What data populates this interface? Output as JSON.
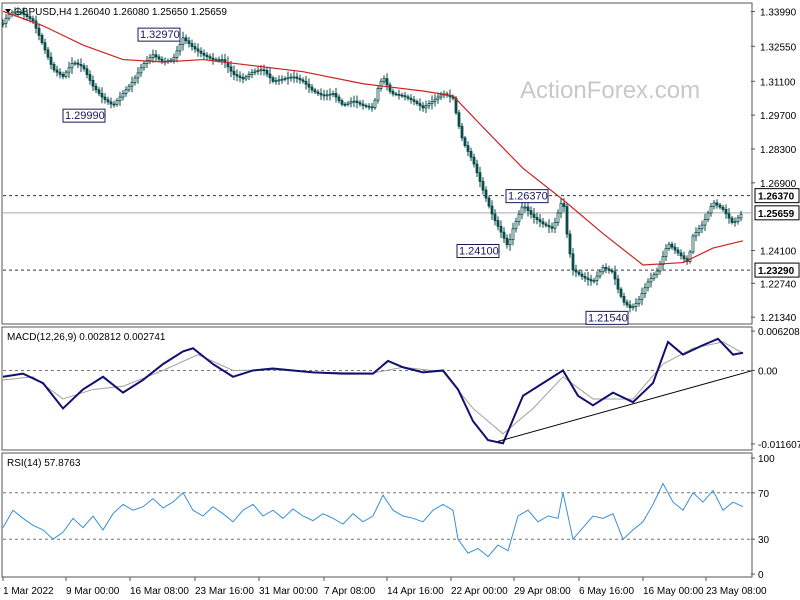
{
  "header": {
    "symbol": "GBPUSD,H4",
    "ohlc": "1.26040 1.26080 1.25650 1.25659"
  },
  "watermark": "ActionForex.com",
  "colors": {
    "price_bar": "#0a4a4a",
    "ma_line": "#cc2222",
    "macd_line": "#101070",
    "signal_line": "#a0a0a0",
    "rsi_line": "#3a8fd8",
    "frame": "#555555",
    "level_line": "#333333"
  },
  "chart_data": [
    {
      "type": "candlestick",
      "title": "GBPUSD,H4",
      "y_ticks": [
        "1.33990",
        "1.32550",
        "1.31100",
        "1.29700",
        "1.28300",
        "1.26900",
        "1.25659",
        "1.24100",
        "1.22740",
        "1.21340"
      ],
      "ylim": [
        1.211,
        1.343
      ],
      "x_ticks": [
        "1 Mar 2022",
        "9 Mar 00:00",
        "16 Mar 08:00",
        "23 Mar 16:00",
        "31 Mar 00:00",
        "7 Apr 08:00",
        "14 Apr 16:00",
        "22 Apr 00:00",
        "29 Apr 08:00",
        "6 May 16:00",
        "16 May 00:00",
        "23 May 08:00"
      ],
      "price_series": [
        {
          "x": 0,
          "y": 1.335
        },
        {
          "x": 5,
          "y": 1.3385
        },
        {
          "x": 12,
          "y": 1.34
        },
        {
          "x": 20,
          "y": 1.339
        },
        {
          "x": 30,
          "y": 1.336
        },
        {
          "x": 40,
          "y": 1.326
        },
        {
          "x": 50,
          "y": 1.316
        },
        {
          "x": 60,
          "y": 1.313
        },
        {
          "x": 70,
          "y": 1.319
        },
        {
          "x": 80,
          "y": 1.317
        },
        {
          "x": 90,
          "y": 1.309
        },
        {
          "x": 100,
          "y": 1.304
        },
        {
          "x": 110,
          "y": 1.301
        },
        {
          "x": 120,
          "y": 1.306
        },
        {
          "x": 130,
          "y": 1.311
        },
        {
          "x": 140,
          "y": 1.318
        },
        {
          "x": 150,
          "y": 1.322
        },
        {
          "x": 160,
          "y": 1.319
        },
        {
          "x": 170,
          "y": 1.32
        },
        {
          "x": 180,
          "y": 1.329
        },
        {
          "x": 190,
          "y": 1.325
        },
        {
          "x": 200,
          "y": 1.322
        },
        {
          "x": 210,
          "y": 1.32
        },
        {
          "x": 220,
          "y": 1.32
        },
        {
          "x": 230,
          "y": 1.314
        },
        {
          "x": 240,
          "y": 1.312
        },
        {
          "x": 250,
          "y": 1.315
        },
        {
          "x": 260,
          "y": 1.316
        },
        {
          "x": 270,
          "y": 1.311
        },
        {
          "x": 280,
          "y": 1.312
        },
        {
          "x": 290,
          "y": 1.313
        },
        {
          "x": 300,
          "y": 1.311
        },
        {
          "x": 310,
          "y": 1.307
        },
        {
          "x": 320,
          "y": 1.305
        },
        {
          "x": 330,
          "y": 1.306
        },
        {
          "x": 340,
          "y": 1.301
        },
        {
          "x": 350,
          "y": 1.303
        },
        {
          "x": 360,
          "y": 1.301
        },
        {
          "x": 370,
          "y": 1.3
        },
        {
          "x": 375,
          "y": 1.308
        },
        {
          "x": 380,
          "y": 1.313
        },
        {
          "x": 388,
          "y": 1.306
        },
        {
          "x": 400,
          "y": 1.305
        },
        {
          "x": 410,
          "y": 1.303
        },
        {
          "x": 420,
          "y": 1.3
        },
        {
          "x": 430,
          "y": 1.303
        },
        {
          "x": 440,
          "y": 1.306
        },
        {
          "x": 450,
          "y": 1.304
        },
        {
          "x": 455,
          "y": 1.294
        },
        {
          "x": 460,
          "y": 1.286
        },
        {
          "x": 470,
          "y": 1.278
        },
        {
          "x": 480,
          "y": 1.266
        },
        {
          "x": 490,
          "y": 1.255
        },
        {
          "x": 500,
          "y": 1.247
        },
        {
          "x": 505,
          "y": 1.2425
        },
        {
          "x": 510,
          "y": 1.25
        },
        {
          "x": 520,
          "y": 1.26
        },
        {
          "x": 530,
          "y": 1.255
        },
        {
          "x": 540,
          "y": 1.252
        },
        {
          "x": 550,
          "y": 1.25
        },
        {
          "x": 560,
          "y": 1.263
        },
        {
          "x": 565,
          "y": 1.244
        },
        {
          "x": 570,
          "y": 1.233
        },
        {
          "x": 580,
          "y": 1.23
        },
        {
          "x": 590,
          "y": 1.228
        },
        {
          "x": 600,
          "y": 1.234
        },
        {
          "x": 610,
          "y": 1.232
        },
        {
          "x": 615,
          "y": 1.225
        },
        {
          "x": 620,
          "y": 1.22
        },
        {
          "x": 628,
          "y": 1.217
        },
        {
          "x": 635,
          "y": 1.22
        },
        {
          "x": 645,
          "y": 1.228
        },
        {
          "x": 655,
          "y": 1.233
        },
        {
          "x": 665,
          "y": 1.244
        },
        {
          "x": 675,
          "y": 1.24
        },
        {
          "x": 685,
          "y": 1.236
        },
        {
          "x": 690,
          "y": 1.247
        },
        {
          "x": 700,
          "y": 1.252
        },
        {
          "x": 710,
          "y": 1.261
        },
        {
          "x": 720,
          "y": 1.258
        },
        {
          "x": 730,
          "y": 1.252
        },
        {
          "x": 738,
          "y": 1.256
        }
      ],
      "ma_series": [
        {
          "x": 0,
          "y": 1.34
        },
        {
          "x": 40,
          "y": 1.334
        },
        {
          "x": 80,
          "y": 1.326
        },
        {
          "x": 120,
          "y": 1.32
        },
        {
          "x": 160,
          "y": 1.319
        },
        {
          "x": 200,
          "y": 1.32
        },
        {
          "x": 240,
          "y": 1.318
        },
        {
          "x": 300,
          "y": 1.315
        },
        {
          "x": 360,
          "y": 1.31
        },
        {
          "x": 420,
          "y": 1.307
        },
        {
          "x": 450,
          "y": 1.305
        },
        {
          "x": 480,
          "y": 1.292
        },
        {
          "x": 520,
          "y": 1.275
        },
        {
          "x": 560,
          "y": 1.262
        },
        {
          "x": 600,
          "y": 1.248
        },
        {
          "x": 640,
          "y": 1.235
        },
        {
          "x": 680,
          "y": 1.236
        },
        {
          "x": 710,
          "y": 1.242
        },
        {
          "x": 740,
          "y": 1.245
        }
      ],
      "levels": [
        {
          "value": 1.2637,
          "label": "1.26370",
          "style": "dashed"
        },
        {
          "value": 1.25659,
          "label": "1.25659",
          "style": "solid"
        },
        {
          "value": 1.2329,
          "label": "1.23290",
          "style": "dashed"
        }
      ],
      "annotations": [
        {
          "label": "1.32970",
          "x": 180,
          "y": 1.3297
        },
        {
          "label": "1.29990",
          "x": 100,
          "y": 1.2999
        },
        {
          "label": "1.26370",
          "x": 560,
          "y": 1.2637
        },
        {
          "label": "1.24100",
          "x": 505,
          "y": 1.241
        },
        {
          "label": "1.21540",
          "x": 628,
          "y": 1.2154
        }
      ]
    },
    {
      "type": "line",
      "title": "MACD(12,26,9) 0.002812 0.002741",
      "y_ticks": [
        "0.006208",
        "0.00",
        "-0.011607"
      ],
      "ylim": [
        -0.0124,
        0.0067
      ],
      "macd_series": [
        {
          "x": 0,
          "y": -0.001
        },
        {
          "x": 20,
          "y": -0.0005
        },
        {
          "x": 40,
          "y": -0.002
        },
        {
          "x": 60,
          "y": -0.006
        },
        {
          "x": 80,
          "y": -0.003
        },
        {
          "x": 100,
          "y": -0.001
        },
        {
          "x": 120,
          "y": -0.0035
        },
        {
          "x": 140,
          "y": -0.0015
        },
        {
          "x": 160,
          "y": 0.001
        },
        {
          "x": 180,
          "y": 0.003
        },
        {
          "x": 190,
          "y": 0.0035
        },
        {
          "x": 210,
          "y": 0.001
        },
        {
          "x": 230,
          "y": -0.001
        },
        {
          "x": 250,
          "y": 0.0
        },
        {
          "x": 270,
          "y": 0.0003
        },
        {
          "x": 290,
          "y": 0.0
        },
        {
          "x": 310,
          "y": -0.0003
        },
        {
          "x": 340,
          "y": -0.0005
        },
        {
          "x": 370,
          "y": -0.0005
        },
        {
          "x": 385,
          "y": 0.0015
        },
        {
          "x": 400,
          "y": 0.0005
        },
        {
          "x": 420,
          "y": -0.0003
        },
        {
          "x": 440,
          "y": 0.0
        },
        {
          "x": 455,
          "y": -0.003
        },
        {
          "x": 470,
          "y": -0.008
        },
        {
          "x": 485,
          "y": -0.011
        },
        {
          "x": 500,
          "y": -0.0115
        },
        {
          "x": 520,
          "y": -0.004
        },
        {
          "x": 540,
          "y": -0.002
        },
        {
          "x": 560,
          "y": 0.0
        },
        {
          "x": 575,
          "y": -0.004
        },
        {
          "x": 590,
          "y": -0.0055
        },
        {
          "x": 610,
          "y": -0.0035
        },
        {
          "x": 630,
          "y": -0.005
        },
        {
          "x": 650,
          "y": -0.002
        },
        {
          "x": 665,
          "y": 0.0045
        },
        {
          "x": 680,
          "y": 0.0025
        },
        {
          "x": 700,
          "y": 0.004
        },
        {
          "x": 715,
          "y": 0.005
        },
        {
          "x": 730,
          "y": 0.0025
        },
        {
          "x": 740,
          "y": 0.0028
        }
      ],
      "signal_series": [
        {
          "x": 0,
          "y": -0.0015
        },
        {
          "x": 30,
          "y": -0.001
        },
        {
          "x": 60,
          "y": -0.0045
        },
        {
          "x": 90,
          "y": -0.003
        },
        {
          "x": 120,
          "y": -0.0025
        },
        {
          "x": 160,
          "y": 0.0
        },
        {
          "x": 195,
          "y": 0.0025
        },
        {
          "x": 230,
          "y": 0.0
        },
        {
          "x": 270,
          "y": 0.0001
        },
        {
          "x": 320,
          "y": -0.0003
        },
        {
          "x": 370,
          "y": -0.0004
        },
        {
          "x": 400,
          "y": 0.0005
        },
        {
          "x": 440,
          "y": -0.0002
        },
        {
          "x": 470,
          "y": -0.006
        },
        {
          "x": 500,
          "y": -0.01
        },
        {
          "x": 530,
          "y": -0.006
        },
        {
          "x": 560,
          "y": -0.001
        },
        {
          "x": 590,
          "y": -0.0045
        },
        {
          "x": 630,
          "y": -0.0045
        },
        {
          "x": 660,
          "y": 0.001
        },
        {
          "x": 690,
          "y": 0.0035
        },
        {
          "x": 720,
          "y": 0.0045
        },
        {
          "x": 740,
          "y": 0.0027
        }
      ],
      "trendline": [
        {
          "x": 495,
          "y": -0.0112
        },
        {
          "x": 750,
          "y": 0.0
        }
      ]
    },
    {
      "type": "line",
      "title": "RSI(14) 57.8763",
      "y_ticks": [
        "100",
        "70",
        "30",
        "0"
      ],
      "ylim": [
        0,
        100
      ],
      "levels": [
        70,
        30
      ],
      "rsi_series": [
        {
          "x": 0,
          "y": 40
        },
        {
          "x": 10,
          "y": 55
        },
        {
          "x": 20,
          "y": 48
        },
        {
          "x": 30,
          "y": 42
        },
        {
          "x": 40,
          "y": 38
        },
        {
          "x": 50,
          "y": 30
        },
        {
          "x": 60,
          "y": 36
        },
        {
          "x": 70,
          "y": 48
        },
        {
          "x": 80,
          "y": 40
        },
        {
          "x": 90,
          "y": 50
        },
        {
          "x": 100,
          "y": 38
        },
        {
          "x": 110,
          "y": 52
        },
        {
          "x": 120,
          "y": 60
        },
        {
          "x": 130,
          "y": 55
        },
        {
          "x": 140,
          "y": 58
        },
        {
          "x": 150,
          "y": 65
        },
        {
          "x": 160,
          "y": 57
        },
        {
          "x": 170,
          "y": 62
        },
        {
          "x": 180,
          "y": 70
        },
        {
          "x": 190,
          "y": 55
        },
        {
          "x": 200,
          "y": 50
        },
        {
          "x": 210,
          "y": 58
        },
        {
          "x": 220,
          "y": 52
        },
        {
          "x": 230,
          "y": 45
        },
        {
          "x": 240,
          "y": 55
        },
        {
          "x": 250,
          "y": 60
        },
        {
          "x": 260,
          "y": 50
        },
        {
          "x": 270,
          "y": 55
        },
        {
          "x": 280,
          "y": 48
        },
        {
          "x": 290,
          "y": 56
        },
        {
          "x": 300,
          "y": 50
        },
        {
          "x": 310,
          "y": 46
        },
        {
          "x": 320,
          "y": 52
        },
        {
          "x": 330,
          "y": 48
        },
        {
          "x": 340,
          "y": 43
        },
        {
          "x": 350,
          "y": 52
        },
        {
          "x": 360,
          "y": 45
        },
        {
          "x": 370,
          "y": 50
        },
        {
          "x": 380,
          "y": 68
        },
        {
          "x": 390,
          "y": 55
        },
        {
          "x": 400,
          "y": 50
        },
        {
          "x": 410,
          "y": 48
        },
        {
          "x": 420,
          "y": 45
        },
        {
          "x": 430,
          "y": 55
        },
        {
          "x": 440,
          "y": 60
        },
        {
          "x": 450,
          "y": 55
        },
        {
          "x": 455,
          "y": 30
        },
        {
          "x": 465,
          "y": 18
        },
        {
          "x": 475,
          "y": 22
        },
        {
          "x": 485,
          "y": 15
        },
        {
          "x": 495,
          "y": 25
        },
        {
          "x": 505,
          "y": 20
        },
        {
          "x": 515,
          "y": 50
        },
        {
          "x": 525,
          "y": 55
        },
        {
          "x": 535,
          "y": 45
        },
        {
          "x": 545,
          "y": 50
        },
        {
          "x": 555,
          "y": 48
        },
        {
          "x": 560,
          "y": 70
        },
        {
          "x": 570,
          "y": 30
        },
        {
          "x": 580,
          "y": 40
        },
        {
          "x": 590,
          "y": 50
        },
        {
          "x": 600,
          "y": 48
        },
        {
          "x": 610,
          "y": 52
        },
        {
          "x": 620,
          "y": 30
        },
        {
          "x": 630,
          "y": 38
        },
        {
          "x": 640,
          "y": 45
        },
        {
          "x": 650,
          "y": 60
        },
        {
          "x": 660,
          "y": 78
        },
        {
          "x": 670,
          "y": 62
        },
        {
          "x": 680,
          "y": 55
        },
        {
          "x": 690,
          "y": 70
        },
        {
          "x": 700,
          "y": 62
        },
        {
          "x": 710,
          "y": 72
        },
        {
          "x": 720,
          "y": 55
        },
        {
          "x": 730,
          "y": 62
        },
        {
          "x": 740,
          "y": 58
        }
      ]
    }
  ]
}
